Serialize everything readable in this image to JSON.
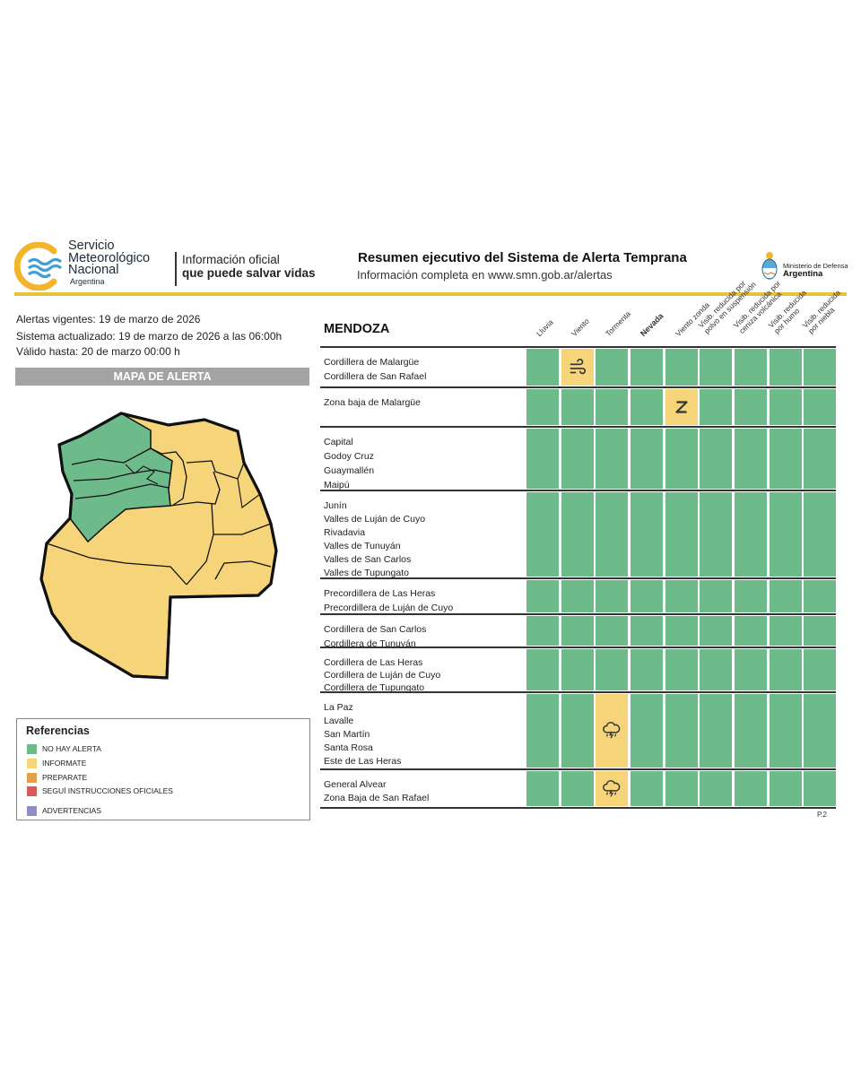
{
  "header": {
    "org_line1": "Servicio",
    "org_line2": "Meteorológico",
    "org_line3": "Nacional",
    "org_line4": "Argentina",
    "tagline1": "Información oficial",
    "tagline2": "que puede salvar vidas",
    "title": "Resumen ejecutivo del Sistema de Alerta Temprana",
    "subtitle": "Información completa en www.smn.gob.ar/alertas",
    "ministry1": "Ministerio de Defensa",
    "ministry2": "Argentina"
  },
  "info": {
    "vigentes": "Alertas vigentes: 19 de marzo de 2026",
    "actualizado": "Sistema actualizado: 19 de marzo de 2026 a las 06:00h",
    "valido": "Válido hasta: 20 de marzo 00:00 h"
  },
  "map_title": "MAPA DE ALERTA",
  "legend": {
    "title": "Referencias",
    "items": [
      {
        "label": "NO HAY ALERTA",
        "color": "#6dba8b"
      },
      {
        "label": "INFORMATE",
        "color": "#f5d47a"
      },
      {
        "label": "PREPARATE",
        "color": "#e8a048"
      },
      {
        "label": "SEGUÍ INSTRUCCIONES OFICIALES",
        "color": "#d95a5a"
      },
      {
        "label": "ADVERTENCIAS",
        "color": "#8e8ec8"
      }
    ]
  },
  "table": {
    "province": "MENDOZA",
    "columns": [
      {
        "label": "Lluvia"
      },
      {
        "label": "Viento"
      },
      {
        "label": "Tormenta"
      },
      {
        "label": "Nevada"
      },
      {
        "label": "Viento zonda"
      },
      {
        "label": "Visib. reducida por polvo en suspensión"
      },
      {
        "label": "Visib. reducida por ceniza volcánica"
      },
      {
        "label": "Visib. reducida por humo"
      },
      {
        "label": "Visib. reducida por niebla"
      }
    ],
    "groups": [
      {
        "zones": [
          "Cordillera de Malargüe",
          "Cordillera de San Rafael"
        ],
        "alerts": [
          "none",
          "informate",
          "none",
          "none",
          "none",
          "none",
          "none",
          "none",
          "none"
        ]
      },
      {
        "zones": [
          "Zona baja de Malargüe"
        ],
        "alerts": [
          "none",
          "none",
          "none",
          "none",
          "informate",
          "none",
          "none",
          "none",
          "none"
        ]
      },
      {
        "zones": [
          "Capital",
          "Godoy Cruz",
          "Guaymallén",
          "Maipú"
        ],
        "alerts": [
          "none",
          "none",
          "none",
          "none",
          "none",
          "none",
          "none",
          "none",
          "none"
        ]
      },
      {
        "zones": [
          "Junín",
          "Valles de Luján de Cuyo",
          "Rivadavia",
          "Valles de Tunuyán",
          "Valles de San Carlos",
          "Valles de Tupungato"
        ],
        "alerts": [
          "none",
          "none",
          "none",
          "none",
          "none",
          "none",
          "none",
          "none",
          "none"
        ]
      },
      {
        "zones": [
          "Precordillera de Las Heras",
          "Precordillera de Luján de Cuyo"
        ],
        "alerts": [
          "none",
          "none",
          "none",
          "none",
          "none",
          "none",
          "none",
          "none",
          "none"
        ]
      },
      {
        "zones": [
          "Cordillera de San Carlos",
          "Cordillera de Tunuyán"
        ],
        "alerts": [
          "none",
          "none",
          "none",
          "none",
          "none",
          "none",
          "none",
          "none",
          "none"
        ]
      },
      {
        "zones": [
          "Cordillera de Las Heras",
          "Cordillera de Luján de Cuyo",
          "Cordillera de Tupungato"
        ],
        "alerts": [
          "none",
          "none",
          "none",
          "none",
          "none",
          "none",
          "none",
          "none",
          "none"
        ]
      },
      {
        "zones": [
          "La Paz",
          "Lavalle",
          "San Martín",
          "Santa Rosa",
          "Este de Las Heras"
        ],
        "alerts": [
          "none",
          "none",
          "informate",
          "none",
          "none",
          "none",
          "none",
          "none",
          "none"
        ]
      },
      {
        "zones": [
          "General Alvear",
          "Zona Baja de San Rafael"
        ],
        "alerts": [
          "none",
          "none",
          "informate",
          "none",
          "none",
          "none",
          "none",
          "none",
          "none"
        ]
      }
    ]
  },
  "page_label": "P.2",
  "icons": {
    "viento": "wind-icon",
    "zonda": "zonda-icon",
    "tormenta": "storm-cloud-icon"
  }
}
